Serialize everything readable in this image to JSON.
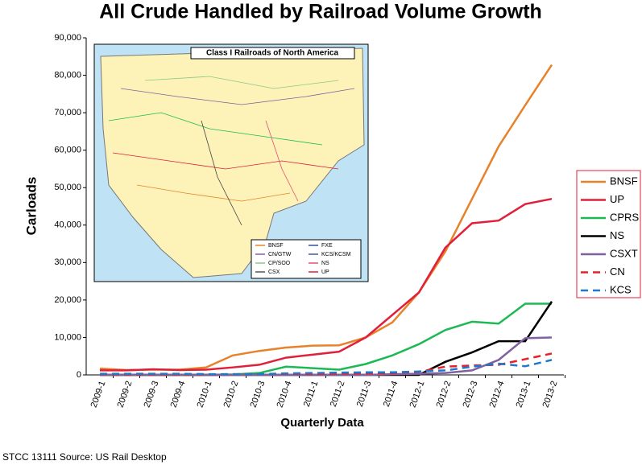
{
  "chart_data": {
    "type": "line",
    "title": "All Crude Handled by Railroad Volume Growth",
    "xlabel": "Quarterly Data",
    "ylabel": "Carloads",
    "footnote": "STCC 13111  Source: US Rail Desktop",
    "categories": [
      "2009-1",
      "2009-2",
      "2009-3",
      "2009-4",
      "2010-1",
      "2010-2",
      "2010-3",
      "2010-4",
      "2011-1",
      "2011-2",
      "2011-3",
      "2011-4",
      "2012-1",
      "2012-2",
      "2012-3",
      "2012-4",
      "2013-1",
      "2013-2"
    ],
    "ylim": [
      0,
      90000
    ],
    "yticks": [
      0,
      {
        "value": 10000,
        "label": "10,000"
      },
      {
        "value": 20000,
        "label": "20,000"
      },
      {
        "value": 30000,
        "label": "30,000"
      },
      {
        "value": 40000,
        "label": "40,000"
      },
      {
        "value": 50000,
        "label": "50,000"
      },
      {
        "value": 60000,
        "label": "60,000"
      },
      {
        "value": 70000,
        "label": "70,000"
      },
      {
        "value": 80000,
        "label": "80,000"
      },
      {
        "value": 90000,
        "label": "90,000"
      }
    ],
    "legend": "right",
    "series": [
      {
        "name": "BNSF",
        "color": "#e8822a",
        "line_style": "solid",
        "values": [
          1700,
          1300,
          1400,
          1400,
          2000,
          5200,
          6400,
          7300,
          7800,
          7900,
          10000,
          14000,
          22000,
          33000,
          47000,
          61000,
          72000,
          82800
        ]
      },
      {
        "name": "UP",
        "color": "#e0203a",
        "line_style": "solid",
        "values": [
          1200,
          1200,
          1500,
          1300,
          1400,
          2000,
          2700,
          4600,
          5400,
          6200,
          10000,
          16000,
          22000,
          34000,
          40500,
          41200,
          45600,
          47000
        ]
      },
      {
        "name": "CPRS",
        "color": "#1db954",
        "line_style": "solid",
        "values": [
          0,
          0,
          0,
          0,
          0,
          100,
          500,
          2200,
          1800,
          1400,
          2900,
          5200,
          8200,
          12000,
          14200,
          13700,
          19000,
          19000
        ]
      },
      {
        "name": "NS",
        "color": "#000000",
        "line_style": "solid",
        "values": [
          0,
          0,
          0,
          0,
          0,
          0,
          0,
          0,
          0,
          0,
          0,
          0,
          0,
          3500,
          6000,
          9000,
          9000,
          19600
        ]
      },
      {
        "name": "CSXT",
        "color": "#8060a0",
        "line_style": "solid",
        "values": [
          0,
          0,
          0,
          0,
          0,
          0,
          0,
          0,
          0,
          0,
          0,
          200,
          300,
          500,
          1200,
          4000,
          9800,
          10000
        ]
      },
      {
        "name": "CN",
        "color": "#e8202a",
        "line_style": "dashed",
        "values": [
          200,
          100,
          100,
          100,
          100,
          200,
          200,
          300,
          200,
          300,
          400,
          500,
          800,
          2200,
          2500,
          2700,
          4200,
          5700
        ]
      },
      {
        "name": "KCS",
        "color": "#1f78c8",
        "line_style": "dashed",
        "values": [
          300,
          300,
          300,
          300,
          200,
          200,
          200,
          400,
          500,
          600,
          700,
          700,
          900,
          1200,
          2200,
          3000,
          2300,
          4000
        ]
      }
    ],
    "inset": {
      "title": "Class I Railroads of North America",
      "legend": [
        "BNSF",
        "CN/GTW",
        "CP/SOO",
        "CSX",
        "FXE",
        "KCS/KCSM",
        "NS",
        "UP"
      ]
    }
  }
}
